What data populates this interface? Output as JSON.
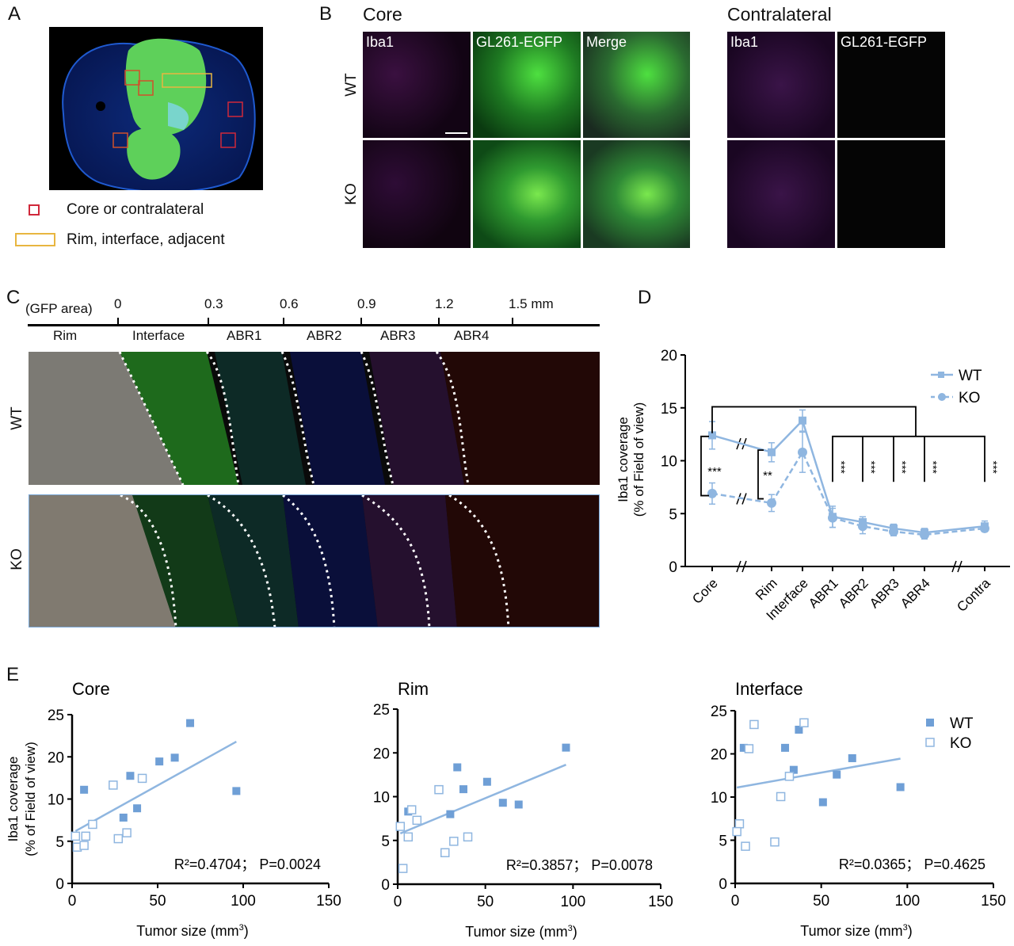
{
  "panels": {
    "a": "A",
    "b": "B",
    "c": "C",
    "d": "D",
    "e": "E"
  },
  "panel_a": {
    "legend": [
      {
        "label": "Core or contralateral",
        "color": "#d0283a"
      },
      {
        "label": "Rim, interface, adjacent",
        "color": "#e8b640"
      }
    ]
  },
  "panel_b": {
    "core_title": "Core",
    "contra_title": "Contralateral",
    "rows": [
      "WT",
      "KO"
    ],
    "core_columns": [
      "Iba1",
      "GL261-EGFP",
      "Merge"
    ],
    "contra_columns": [
      "Iba1",
      "GL261-EGFP"
    ]
  },
  "panel_c": {
    "scale_prefix": "(GFP area)",
    "ticks": [
      "0",
      "0.3",
      "0.6",
      "0.9",
      "1.2",
      "1.5 mm"
    ],
    "regions": [
      "Rim",
      "Interface",
      "ABR1",
      "ABR2",
      "ABR3",
      "ABR4"
    ],
    "rows": [
      "WT",
      "KO"
    ]
  },
  "chart_data": [
    {
      "id": "D",
      "type": "line",
      "ylabel": "Iba1 coverage\n(% of Field of view)",
      "ylabel_lines": [
        "Iba1 coverage",
        "(% of Field of view)"
      ],
      "categories": [
        "Core",
        "Rim",
        "Interface",
        "ABR1",
        "ABR2",
        "ABR3",
        "ABR4",
        "Contra"
      ],
      "ylim": [
        0,
        20
      ],
      "yticks": [
        "0",
        "5",
        "10",
        "15",
        "20"
      ],
      "legend_position": "top-right",
      "axis_breaks": [
        "between Core and Rim",
        "between ABR4 and Contra"
      ],
      "series": [
        {
          "name": "WT",
          "style": "solid",
          "marker": "square",
          "color": "#8fb6e0",
          "values": [
            12.4,
            10.8,
            13.8,
            4.7,
            4.2,
            3.6,
            3.2,
            3.8
          ],
          "errors": [
            1.3,
            0.9,
            1.0,
            1.0,
            0.5,
            0.4,
            0.4,
            0.5
          ]
        },
        {
          "name": "KO",
          "style": "dashed",
          "marker": "circle",
          "color": "#8fb6e0",
          "values": [
            6.9,
            6.0,
            10.8,
            4.6,
            3.8,
            3.3,
            3.0,
            3.6
          ],
          "errors": [
            1.0,
            0.8,
            1.9,
            0.9,
            0.7,
            0.4,
            0.4,
            0.3
          ]
        }
      ],
      "annotations": {
        "core": "***",
        "rim": "**",
        "abr": [
          "***",
          "***",
          "***",
          "***",
          "***"
        ]
      }
    },
    {
      "id": "E-core",
      "type": "scatter",
      "title": "Core",
      "xlabel": "Tumor size (mm",
      "xlabel_sup": "3",
      "xlabel_end": ")",
      "ylabel_lines": [
        "Iba1 coverage",
        "(% of Field of view)"
      ],
      "xlim": [
        0,
        150
      ],
      "xticks": [
        "0",
        "50",
        "100",
        "150"
      ],
      "yticks": [
        "0",
        "5",
        "10",
        "20",
        "25"
      ],
      "stats": "R²=0.4704； P=0.0024",
      "series": [
        {
          "name": "WT",
          "marker": "filled-square",
          "points": [
            [
              7,
              12.2
            ],
            [
              34,
              15.5
            ],
            [
              51,
              18.9
            ],
            [
              60,
              19.8
            ],
            [
              69,
              24
            ],
            [
              96,
              11.9
            ],
            [
              38,
              8.9
            ],
            [
              30,
              7.8
            ]
          ]
        },
        {
          "name": "KO",
          "marker": "open-square",
          "points": [
            [
              24,
              13.3
            ],
            [
              41,
              14.9
            ],
            [
              12,
              7.0
            ],
            [
              8,
              5.6
            ],
            [
              2,
              5.6
            ],
            [
              3,
              4.3
            ],
            [
              7,
              4.5
            ],
            [
              27,
              5.3
            ],
            [
              32,
              6.0
            ]
          ]
        }
      ],
      "fit": [
        [
          2,
          6.2
        ],
        [
          96,
          21.8
        ]
      ]
    },
    {
      "id": "E-rim",
      "type": "scatter",
      "title": "Rim",
      "xlabel": "Tumor size (mm",
      "xlabel_sup": "3",
      "xlabel_end": ")",
      "xlim": [
        0,
        150
      ],
      "xticks": [
        "0",
        "50",
        "100",
        "150"
      ],
      "yticks": [
        "0",
        "5",
        "10",
        "20",
        "25"
      ],
      "stats": "R²=0.3857； P=0.0078",
      "series": [
        {
          "name": "WT",
          "marker": "filled-square",
          "points": [
            [
              96,
              20.6
            ],
            [
              34,
              16.7
            ],
            [
              51,
              13.4
            ],
            [
              37.5,
              11.7
            ],
            [
              60,
              9.3
            ],
            [
              69,
              9.1
            ],
            [
              30,
              8.0
            ],
            [
              6,
              8.3
            ]
          ]
        },
        {
          "name": "KO",
          "marker": "open-square",
          "points": [
            [
              23.5,
              11.6
            ],
            [
              8,
              8.5
            ],
            [
              11,
              7.3
            ],
            [
              1.5,
              6.6
            ],
            [
              6,
              5.4
            ],
            [
              40,
              5.4
            ],
            [
              32,
              4.9
            ],
            [
              27,
              3.6
            ],
            [
              3,
              1.8
            ]
          ]
        }
      ],
      "fit": [
        [
          1.5,
          5.8
        ],
        [
          96,
          17.3
        ]
      ]
    },
    {
      "id": "E-interface",
      "type": "scatter",
      "title": "Interface",
      "xlabel": "Tumor size (mm",
      "xlabel_sup": "3",
      "xlabel_end": ")",
      "xlim": [
        0,
        150
      ],
      "xticks": [
        "0",
        "50",
        "100",
        "150"
      ],
      "yticks": [
        "0",
        "5",
        "10",
        "20",
        "25"
      ],
      "stats": "R²=0.0365； P=0.4625",
      "legend": [
        "WT",
        "KO"
      ],
      "legend_position": "top-right",
      "series": [
        {
          "name": "WT",
          "marker": "filled-square",
          "points": [
            [
              37,
              22.8
            ],
            [
              29,
              20.7
            ],
            [
              68,
              19.0
            ],
            [
              34,
              16.3
            ],
            [
              59,
              15.2
            ],
            [
              96,
              12.3
            ],
            [
              51,
              9.4
            ],
            [
              5,
              20.7
            ]
          ]
        },
        {
          "name": "KO",
          "marker": "open-square",
          "points": [
            [
              11,
              23.4
            ],
            [
              40,
              23.6
            ],
            [
              8,
              20.6
            ],
            [
              31.5,
              14.8
            ],
            [
              26.5,
              10.1
            ],
            [
              2.5,
              6.9
            ],
            [
              1,
              6.0
            ],
            [
              6,
              4.3
            ],
            [
              23,
              4.8
            ]
          ]
        }
      ],
      "fit": [
        [
          1,
          12.2
        ],
        [
          96,
          18.9
        ]
      ]
    }
  ],
  "colors": {
    "series": "#8fb6e0",
    "filled": "#6f9fd6",
    "open_edge": "#8fb6e0"
  }
}
